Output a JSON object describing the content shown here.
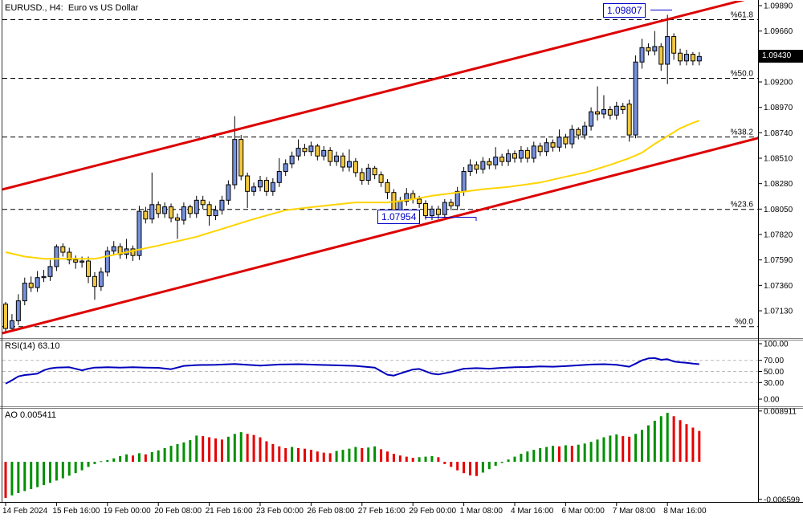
{
  "window": {
    "title": "EURUSD., H4:  Euro vs US Dollar"
  },
  "colors": {
    "bull_candle": "#7590DC",
    "bear_candle": "#F4C83E",
    "candle_border": "#000000",
    "ma_line": "#FFD400",
    "channel_line": "#DD0000",
    "fib_line": "#000000",
    "rsi_line": "#0000BB",
    "rsi_grid": "#BBBBBB",
    "ao_up": "#009000",
    "ao_down": "#E60000",
    "annotation": "#0000C8",
    "current_price_bg": "#000000",
    "current_price_fg": "#FFFFFF",
    "axis_text": "#000000"
  },
  "chart_data": {
    "type": "candlestick",
    "symbol": "EURUSD",
    "timeframe": "H4",
    "title": "EURUSD., H4:  Euro vs US Dollar",
    "x_axis_labels": [
      "14 Feb 2024",
      "15 Feb 16:00",
      "19 Feb 00:00",
      "20 Feb 08:00",
      "21 Feb 16:00",
      "23 Feb 00:00",
      "26 Feb 08:00",
      "27 Feb 16:00",
      "29 Feb 00:00",
      "1 Mar 08:00",
      "4 Mar 16:00",
      "6 Mar 00:00",
      "7 Mar 08:00",
      "8 Mar 16:00"
    ],
    "x_axis_label_bars": [
      0,
      8,
      16,
      24,
      32,
      40,
      48,
      56,
      64,
      72,
      80,
      88,
      96,
      104
    ],
    "price_axis": {
      "ticks": [
        "1.07130",
        "1.07360",
        "1.07590",
        "1.07820",
        "1.08050",
        "1.08280",
        "1.08510",
        "1.08740",
        "1.08970",
        "1.09200",
        "1.09430",
        "1.09660",
        "1.09890"
      ],
      "current": "1.09430"
    },
    "candles": {
      "open": [
        1.0719,
        1.0697,
        1.0704,
        1.0722,
        1.0738,
        1.0734,
        1.0743,
        1.0744,
        1.0753,
        1.0771,
        1.0766,
        1.0759,
        1.0757,
        1.0758,
        1.0744,
        1.0735,
        1.0748,
        1.0767,
        1.0771,
        1.0764,
        1.0769,
        1.0763,
        1.0803,
        1.0796,
        1.0809,
        1.0801,
        1.0807,
        1.0797,
        1.0795,
        1.0807,
        1.0801,
        1.0813,
        1.0809,
        1.0799,
        1.0804,
        1.0813,
        1.0827,
        1.0868,
        1.0835,
        1.0821,
        1.0825,
        1.0831,
        1.0821,
        1.0829,
        1.0839,
        1.0846,
        1.0853,
        1.086,
        1.0857,
        1.0862,
        1.0853,
        1.0858,
        1.0848,
        1.0853,
        1.0843,
        1.0848,
        1.0838,
        1.0831,
        1.0842,
        1.0836,
        1.0829,
        1.082,
        1.08,
        1.0812,
        1.0819,
        1.0814,
        1.081,
        1.0799,
        1.0805,
        1.08,
        1.0811,
        1.0808,
        1.0821,
        1.0839,
        1.0845,
        1.0841,
        1.0848,
        1.0845,
        1.0852,
        1.0848,
        1.0855,
        1.0851,
        1.0858,
        1.0851,
        1.0862,
        1.0857,
        1.0865,
        1.0861,
        1.087,
        1.0864,
        1.0877,
        1.0872,
        1.088,
        1.0893,
        1.0891,
        1.0895,
        1.089,
        1.0898,
        1.09,
        1.0872,
        1.0938,
        1.0951,
        1.0948,
        1.0952,
        1.0936,
        1.0961,
        1.0946,
        1.0939,
        1.0945,
        1.0939
      ],
      "high": [
        1.0721,
        1.071,
        1.0728,
        1.0743,
        1.0744,
        1.0749,
        1.075,
        1.0759,
        1.0773,
        1.0774,
        1.077,
        1.0763,
        1.0762,
        1.0762,
        1.0748,
        1.0752,
        1.0771,
        1.0776,
        1.0774,
        1.0778,
        1.0772,
        1.0808,
        1.0807,
        1.0838,
        1.0812,
        1.0811,
        1.081,
        1.0801,
        1.0811,
        1.0809,
        1.0817,
        1.0817,
        1.0812,
        1.0808,
        1.0817,
        1.0831,
        1.0889,
        1.0872,
        1.0838,
        1.0829,
        1.0835,
        1.0834,
        1.0833,
        1.0851,
        1.085,
        1.0857,
        1.0868,
        1.0864,
        1.0866,
        1.0864,
        1.0862,
        1.0861,
        1.0857,
        1.0856,
        1.0859,
        1.0851,
        1.0842,
        1.0846,
        1.0844,
        1.0839,
        1.0832,
        1.0823,
        1.0816,
        1.0824,
        1.0822,
        1.0817,
        1.0813,
        1.0808,
        1.0808,
        1.0814,
        1.0814,
        1.0825,
        1.0843,
        1.085,
        1.0848,
        1.0852,
        1.0851,
        1.0861,
        1.0855,
        1.0859,
        1.0858,
        1.0862,
        1.0861,
        1.0866,
        1.0865,
        1.0869,
        1.0868,
        1.0877,
        1.0873,
        1.0881,
        1.0879,
        1.0884,
        1.0897,
        1.0916,
        1.0908,
        1.0898,
        1.0902,
        1.0901,
        1.0904,
        1.0944,
        1.0959,
        1.0955,
        1.0966,
        1.0955,
        1.09807,
        1.0964,
        1.095,
        1.0949,
        1.0947,
        1.0947
      ],
      "low": [
        1.0694,
        1.0694,
        1.07,
        1.0718,
        1.073,
        1.073,
        1.0739,
        1.074,
        1.0749,
        1.0762,
        1.0755,
        1.0751,
        1.0752,
        1.0738,
        1.0723,
        1.0731,
        1.0744,
        1.0763,
        1.076,
        1.076,
        1.0758,
        1.0759,
        1.0792,
        1.0792,
        1.0797,
        1.0797,
        1.0793,
        1.0778,
        1.0791,
        1.0797,
        1.0797,
        1.0805,
        1.079,
        1.0795,
        1.08,
        1.0809,
        1.0823,
        1.0831,
        1.0806,
        1.0817,
        1.0821,
        1.0817,
        1.0817,
        1.0825,
        1.0835,
        1.0842,
        1.0849,
        1.0853,
        1.0853,
        1.0849,
        1.0849,
        1.0844,
        1.0844,
        1.0839,
        1.0839,
        1.0834,
        1.0827,
        1.0827,
        1.0832,
        1.0825,
        1.0814,
        1.0796,
        1.0796,
        1.0808,
        1.081,
        1.0806,
        1.07954,
        1.0795,
        1.0796,
        1.0796,
        1.0804,
        1.0804,
        1.0817,
        1.0835,
        1.0837,
        1.0837,
        1.0841,
        1.0841,
        1.0844,
        1.0844,
        1.0847,
        1.0847,
        1.0847,
        1.0847,
        1.0853,
        1.0853,
        1.0857,
        1.0857,
        1.086,
        1.086,
        1.0868,
        1.0868,
        1.0876,
        1.0885,
        1.0887,
        1.0886,
        1.0886,
        1.0891,
        1.0866,
        1.0869,
        1.0932,
        1.0944,
        1.0944,
        1.093,
        1.0918,
        1.094,
        1.0935,
        1.0935,
        1.0935,
        1.0935
      ],
      "close": [
        1.0697,
        1.0704,
        1.0722,
        1.0738,
        1.0734,
        1.0743,
        1.0744,
        1.0753,
        1.0771,
        1.0766,
        1.0759,
        1.0757,
        1.0758,
        1.0744,
        1.0735,
        1.0748,
        1.0767,
        1.0771,
        1.0764,
        1.0769,
        1.0763,
        1.0803,
        1.0796,
        1.0809,
        1.0801,
        1.0807,
        1.0797,
        1.0795,
        1.0807,
        1.0801,
        1.0813,
        1.0809,
        1.0799,
        1.0804,
        1.0813,
        1.0827,
        1.0868,
        1.0835,
        1.0821,
        1.0825,
        1.0831,
        1.0821,
        1.0829,
        1.0839,
        1.0846,
        1.0853,
        1.086,
        1.0857,
        1.0862,
        1.0853,
        1.0858,
        1.0848,
        1.0853,
        1.0843,
        1.0848,
        1.0838,
        1.0831,
        1.0842,
        1.0836,
        1.0829,
        1.082,
        1.08,
        1.0812,
        1.0819,
        1.0814,
        1.081,
        1.0799,
        1.0805,
        1.08,
        1.0811,
        1.0808,
        1.0821,
        1.0839,
        1.0845,
        1.0841,
        1.0848,
        1.0845,
        1.0852,
        1.0848,
        1.0855,
        1.0851,
        1.0858,
        1.0851,
        1.0862,
        1.0857,
        1.0865,
        1.0861,
        1.087,
        1.0864,
        1.0877,
        1.0872,
        1.088,
        1.0893,
        1.0891,
        1.0895,
        1.089,
        1.0898,
        1.0895,
        1.0872,
        1.0938,
        1.0951,
        1.0948,
        1.0952,
        1.0936,
        1.0961,
        1.0946,
        1.0939,
        1.0945,
        1.0939,
        1.0943
      ]
    },
    "moving_average_points": [
      [
        0,
        1.0766
      ],
      [
        3,
        1.0762
      ],
      [
        6,
        1.076
      ],
      [
        10,
        1.076
      ],
      [
        14,
        1.076
      ],
      [
        19,
        1.0766
      ],
      [
        24,
        1.0772
      ],
      [
        30,
        1.078
      ],
      [
        34,
        1.0787
      ],
      [
        39,
        1.0796
      ],
      [
        44,
        1.0804
      ],
      [
        50,
        1.0808
      ],
      [
        55,
        1.0811
      ],
      [
        60,
        1.0811
      ],
      [
        63,
        1.0813
      ],
      [
        67,
        1.0817
      ],
      [
        71,
        1.082
      ],
      [
        75,
        1.0823
      ],
      [
        79,
        1.0825
      ],
      [
        84,
        1.0829
      ],
      [
        87,
        1.0833
      ],
      [
        91,
        1.0838
      ],
      [
        95,
        1.0845
      ],
      [
        98,
        1.0851
      ],
      [
        100,
        1.0856
      ],
      [
        102,
        1.0864
      ],
      [
        104,
        1.0871
      ],
      [
        106,
        1.0878
      ],
      [
        108,
        1.0883
      ],
      [
        109,
        1.0885
      ]
    ],
    "channel": {
      "upper": {
        "price_start": 1.08227,
        "price_end": 1.09975
      },
      "lower": {
        "price_start": 1.06927,
        "price_end": 1.08692
      }
    },
    "fibonacci_levels": [
      {
        "label": "%61.8",
        "price": 1.09763
      },
      {
        "label": "%50.0",
        "price": 1.09233
      },
      {
        "label": "%38.2",
        "price": 1.08702
      },
      {
        "label": "%23.6",
        "price": 1.08047
      },
      {
        "label": "%0.0",
        "price": 1.06987
      }
    ],
    "annotations": {
      "high": "1.09807",
      "low": "1.07954"
    },
    "rsi": {
      "label": "RSI(14) 63.10",
      "value": 63.1,
      "period": 14,
      "axis_labels": [
        "100.00",
        "70.00",
        "50.00",
        "30.00",
        "0.00"
      ],
      "guide_levels": [
        70,
        50,
        30
      ],
      "points": [
        [
          0,
          28
        ],
        [
          1,
          34
        ],
        [
          2,
          41
        ],
        [
          3,
          43.5
        ],
        [
          4,
          44.5
        ],
        [
          5,
          46
        ],
        [
          6,
          52
        ],
        [
          7,
          55.5
        ],
        [
          8,
          57
        ],
        [
          10,
          57.5
        ],
        [
          12,
          52
        ],
        [
          13,
          55
        ],
        [
          14,
          57
        ],
        [
          16,
          57.5
        ],
        [
          18,
          57
        ],
        [
          20,
          57.5
        ],
        [
          22,
          57
        ],
        [
          24,
          56.5
        ],
        [
          26,
          54
        ],
        [
          27,
          57
        ],
        [
          28,
          60
        ],
        [
          30,
          61.5
        ],
        [
          33,
          62
        ],
        [
          36,
          63.5
        ],
        [
          38,
          62
        ],
        [
          40,
          60.5
        ],
        [
          43,
          62.5
        ],
        [
          46,
          63
        ],
        [
          49,
          62
        ],
        [
          52,
          61
        ],
        [
          55,
          60
        ],
        [
          58,
          57
        ],
        [
          60,
          44
        ],
        [
          61,
          42.5
        ],
        [
          63,
          50
        ],
        [
          64,
          53.5
        ],
        [
          65,
          54.5
        ],
        [
          67,
          46
        ],
        [
          68,
          44.5
        ],
        [
          70,
          49
        ],
        [
          72,
          55
        ],
        [
          74,
          56
        ],
        [
          76,
          55
        ],
        [
          78,
          56.5
        ],
        [
          80,
          57.5
        ],
        [
          82,
          58
        ],
        [
          84,
          59
        ],
        [
          86,
          58.5
        ],
        [
          88,
          59.5
        ],
        [
          90,
          61
        ],
        [
          92,
          62.5
        ],
        [
          94,
          63
        ],
        [
          96,
          62
        ],
        [
          98,
          58.5
        ],
        [
          99,
          64
        ],
        [
          100,
          70
        ],
        [
          101,
          73.5
        ],
        [
          102,
          74
        ],
        [
          103,
          71
        ],
        [
          104,
          72
        ],
        [
          105,
          68
        ],
        [
          106,
          66.5
        ],
        [
          107,
          65.5
        ],
        [
          108,
          64
        ],
        [
          109,
          63.1
        ]
      ]
    },
    "ao": {
      "label": "AO 0.005411",
      "value": 0.005411,
      "axis_max_label": "0.008911",
      "axis_min_label": "-0.006599",
      "values": [
        -0.00634,
        -0.0059,
        -0.0055,
        -0.00515,
        -0.0048,
        -0.00445,
        -0.0041,
        -0.0037,
        -0.0033,
        -0.0029,
        -0.00245,
        -0.002,
        -0.0015,
        -0.0009,
        -0.0004,
        0.0001,
        0.0003,
        0.0006,
        0.001,
        0.0013,
        0.0011,
        0.0015,
        0.0013,
        0.0017,
        0.002,
        0.0024,
        0.0028,
        0.0031,
        0.0034,
        0.0038,
        0.0046,
        0.0045,
        0.0043,
        0.0041,
        0.0039,
        0.0044,
        0.0049,
        0.0052,
        0.0049,
        0.0047,
        0.0043,
        0.0036,
        0.0031,
        0.0027,
        0.0024,
        0.0026,
        0.0024,
        0.0023,
        0.0021,
        0.0018,
        0.0016,
        0.0015,
        0.0019,
        0.0021,
        0.0023,
        0.0026,
        0.0024,
        0.0025,
        0.0027,
        0.0022,
        0.0018,
        0.0014,
        0.0011,
        0.0009,
        0.0007,
        0.0008,
        0.0009,
        0.001,
        0.0008,
        -0.0004,
        -0.0009,
        -0.0015,
        -0.002,
        -0.0024,
        -0.0025,
        -0.0019,
        -0.0013,
        -0.0007,
        -0.0002,
        0.0004,
        0.0009,
        0.0014,
        0.0018,
        0.0021,
        0.0024,
        0.0026,
        0.0028,
        0.0027,
        0.0029,
        0.0028,
        0.003,
        0.0032,
        0.0035,
        0.0039,
        0.0043,
        0.0046,
        0.0048,
        0.0045,
        0.0044,
        0.0049,
        0.0056,
        0.0064,
        0.0072,
        0.008,
        0.0086,
        0.008,
        0.0073,
        0.0066,
        0.006,
        0.005411
      ]
    }
  }
}
